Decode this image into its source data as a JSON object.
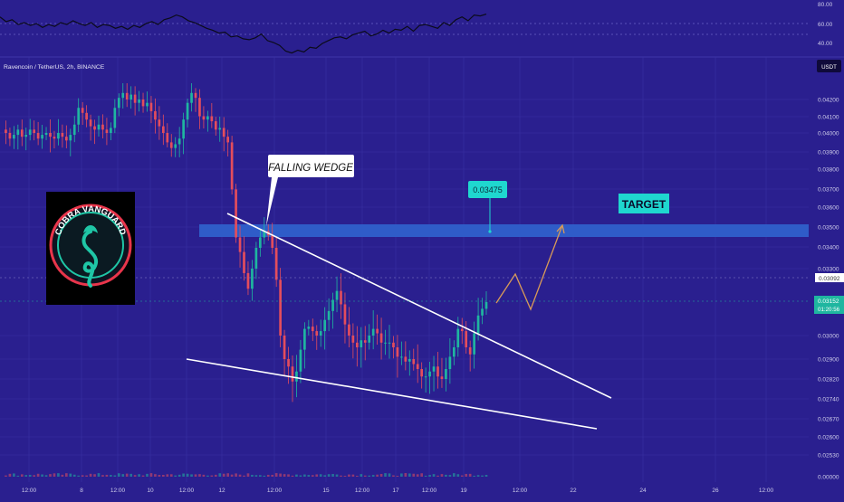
{
  "header": {
    "symbol": "Ravencoin / TetherUS, 2h, BINANCE",
    "currency_button": "USDT"
  },
  "indicator": {
    "ticks": [
      "80.00",
      "60.00",
      "40.00"
    ],
    "values": [
      66,
      61,
      63,
      58,
      60,
      57,
      59,
      55,
      58,
      56,
      60,
      58,
      62,
      59,
      57,
      60,
      55,
      58,
      57,
      54,
      56,
      53,
      57,
      55,
      59,
      61,
      58,
      63,
      65,
      68,
      66,
      62,
      60,
      57,
      54,
      52,
      49,
      50,
      45,
      46,
      43,
      42,
      44,
      48,
      41,
      39,
      36,
      30,
      28,
      31,
      29,
      34,
      33,
      38,
      41,
      44,
      45,
      43,
      47,
      49,
      51,
      46,
      48,
      52,
      49,
      53,
      52,
      56,
      51,
      57,
      58,
      56,
      54,
      60,
      57,
      63,
      66,
      62,
      68,
      67,
      69
    ]
  },
  "chart_data": {
    "type": "candlestick",
    "title": "Ravencoin / TetherUS, 2h, BINANCE",
    "ylabel": "USDT",
    "ylim": [
      0.0,
      0.043
    ],
    "yscale": "mixed-display",
    "yticks": [
      "0.04200",
      "0.04100",
      "0.04000",
      "0.03900",
      "0.03800",
      "0.03700",
      "0.03600",
      "0.03500",
      "0.03400",
      "0.03300",
      "0.03000",
      "0.02900",
      "0.02820",
      "0.02740",
      "0.02670",
      "0.02600",
      "0.02530",
      "0.00000"
    ],
    "xticks": [
      "12:00",
      "8",
      "12:00",
      "10",
      "12:00",
      "12",
      "12:00",
      "15",
      "12:00",
      "17",
      "12:00",
      "19",
      "12:00",
      "22",
      "24",
      "26",
      "12:00"
    ],
    "price_series": [
      0.0402,
      0.04,
      0.0397,
      0.0399,
      0.0402,
      0.0398,
      0.0399,
      0.0402,
      0.04,
      0.0397,
      0.0399,
      0.04,
      0.0398,
      0.0397,
      0.04,
      0.0398,
      0.0396,
      0.0399,
      0.0405,
      0.0415,
      0.0412,
      0.0408,
      0.0404,
      0.0402,
      0.0405,
      0.0402,
      0.04,
      0.0403,
      0.0415,
      0.0421,
      0.0424,
      0.042,
      0.0423,
      0.0418,
      0.042,
      0.0416,
      0.0418,
      0.0413,
      0.0408,
      0.0404,
      0.04,
      0.0395,
      0.0392,
      0.0394,
      0.0397,
      0.0408,
      0.0418,
      0.0424,
      0.0421,
      0.041,
      0.0408,
      0.041,
      0.0407,
      0.0402,
      0.0403,
      0.0398,
      0.0395,
      0.037,
      0.0345,
      0.0338,
      0.0328,
      0.0321,
      0.033,
      0.034,
      0.0345,
      0.0348,
      0.0346,
      0.034,
      0.0325,
      0.03,
      0.029,
      0.0287,
      0.0281,
      0.0285,
      0.0294,
      0.0303,
      0.0304,
      0.0302,
      0.03,
      0.0302,
      0.0307,
      0.0311,
      0.0316,
      0.032,
      0.0314,
      0.0305,
      0.03,
      0.0297,
      0.0295,
      0.0298,
      0.0297,
      0.03,
      0.0303,
      0.0301,
      0.0297,
      0.0297,
      0.0297,
      0.0295,
      0.0291,
      0.0291,
      0.0289,
      0.029,
      0.0288,
      0.0286,
      0.0283,
      0.0283,
      0.0285,
      0.0287,
      0.0283,
      0.0282,
      0.0286,
      0.0291,
      0.0295,
      0.0303,
      0.0302,
      0.0295,
      0.0292,
      0.0301,
      0.0309,
      0.0312,
      0.0315
    ],
    "current_price": "0.03152",
    "countdown": "01:20:56",
    "previous_close_label": "0.03092",
    "annotations": {
      "pattern_label": "FALLING WEDGE",
      "target_price": "0.03475",
      "target_label": "TARGET",
      "target_zone": [
        0.03455,
        0.03495
      ]
    }
  },
  "logo": {
    "text": "COBRA VANGUARD",
    "colors": {
      "ring_outer": "#e9354b",
      "ring_inner": "#1fc6a6"
    }
  },
  "colors": {
    "background": "#2a1f8f",
    "candle_up": "#1fb6a0",
    "candle_down": "#e44d5c",
    "target_zone": "#2f5cc8",
    "target_bubble": "#1fd7cf",
    "projection": "#d99a58",
    "wedge_lines": "#ffffff"
  }
}
